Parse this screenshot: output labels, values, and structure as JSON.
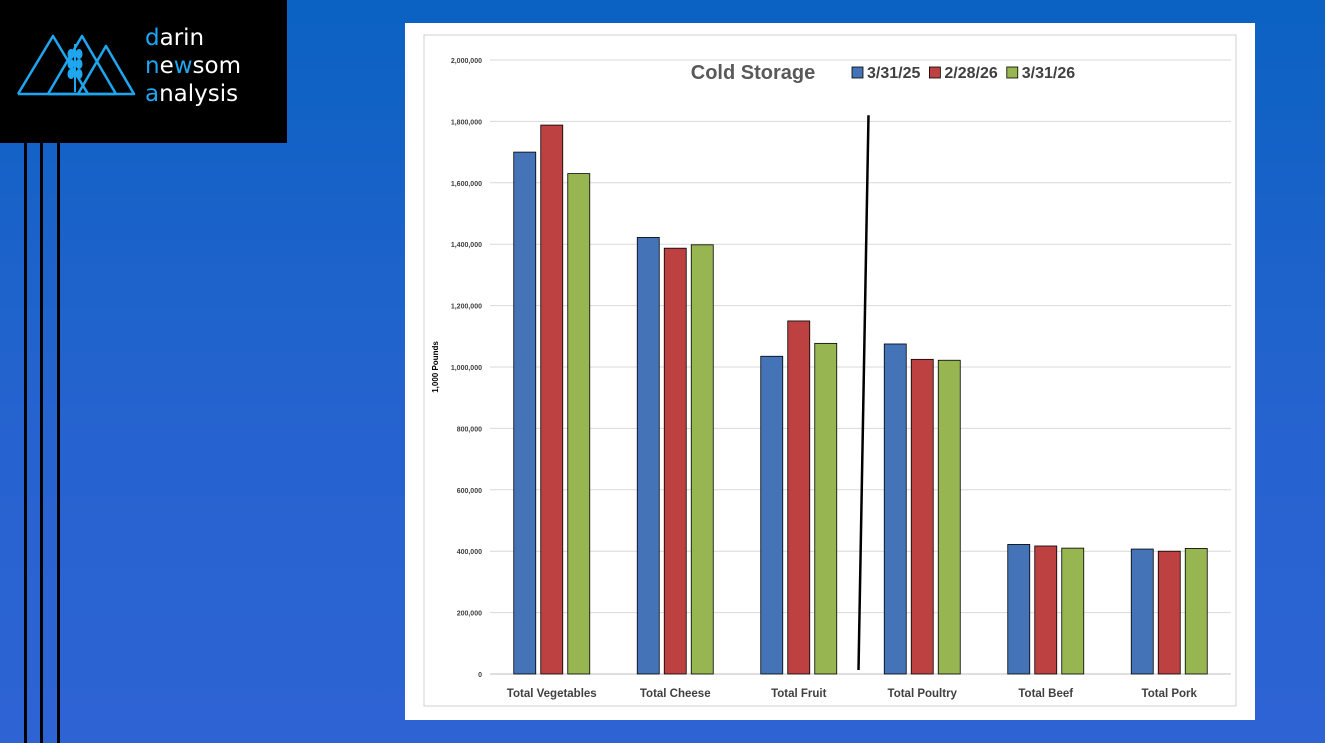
{
  "brand": {
    "line1": {
      "accent": "d",
      "rest": "arin"
    },
    "line2": {
      "accent": "n",
      "mid": "e",
      "accent2": "w",
      "rest": "som"
    },
    "line3": {
      "accent": "a",
      "rest": "nalysis"
    },
    "accent_color": "#1ea7f0",
    "icon": "mountain-wheat-logo-icon"
  },
  "chart_data": {
    "type": "bar",
    "title": "Cold Storage",
    "ylabel": "1,000 Pounds",
    "xlabel": "",
    "ylim": [
      0,
      2000000
    ],
    "yticks": [
      "0",
      "200,000",
      "400,000",
      "600,000",
      "800,000",
      "1,000,000",
      "1,200,000",
      "1,400,000",
      "1,600,000",
      "1,800,000",
      "2,000,000"
    ],
    "categories": [
      "Total Vegetables",
      "Total Cheese",
      "Total Fruit",
      "Total Poultry",
      "Total Beef",
      "Total Pork"
    ],
    "series": [
      {
        "name": "3/31/25",
        "color": "#4473b8",
        "values": [
          1700000,
          1422000,
          1035000,
          1075000,
          422000,
          407000
        ]
      },
      {
        "name": "2/28/26",
        "color": "#bc4140",
        "values": [
          1788000,
          1387000,
          1150000,
          1025000,
          417000,
          400000
        ]
      },
      {
        "name": "3/31/26",
        "color": "#97b651",
        "values": [
          1630000,
          1398000,
          1077000,
          1022000,
          410000,
          409000
        ]
      }
    ],
    "grid": true,
    "legend_position": "top-right",
    "divider_after_category": 2
  }
}
